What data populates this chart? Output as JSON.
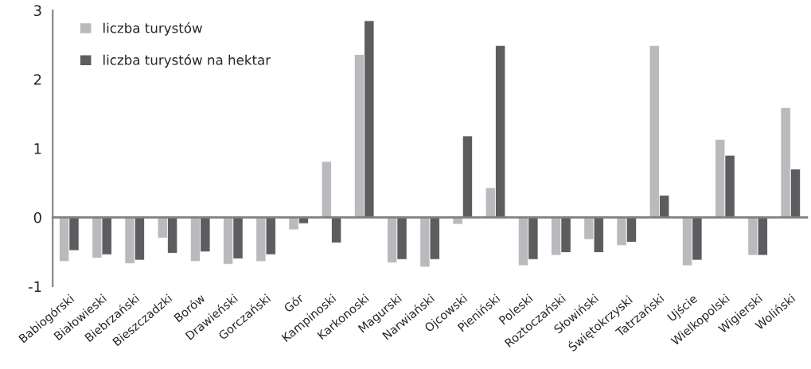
{
  "chart_data": {
    "type": "bar",
    "categories": [
      "Babiogórski",
      "Białowieski",
      "Biebrzański",
      "Bieszczadzki",
      "Borów",
      "Drawieński",
      "Gorczański",
      "Gór",
      "Kampinoski",
      "Karkonoski",
      "Magurski",
      "Narwiański",
      "Ojcowski",
      "Pieniński",
      "Poleski",
      "Roztoczański",
      "Słowiński",
      "Świętokrzyski",
      "Tatrzański",
      "Ujście",
      "Wielkopolski",
      "Wigierski",
      "Woliński"
    ],
    "series": [
      {
        "name": "liczba turystów",
        "color": "#b9babd",
        "values": [
          -0.64,
          -0.59,
          -0.67,
          -0.3,
          -0.64,
          -0.68,
          -0.64,
          -0.18,
          0.81,
          2.36,
          -0.66,
          -0.72,
          -0.1,
          0.43,
          -0.7,
          -0.55,
          -0.32,
          -0.41,
          2.49,
          -0.7,
          1.13,
          -0.55,
          1.59
        ]
      },
      {
        "name": "liczba turystów na hektar",
        "color": "#5d5d5f",
        "values": [
          -0.48,
          -0.54,
          -0.62,
          -0.52,
          -0.5,
          -0.6,
          -0.54,
          -0.09,
          -0.37,
          2.85,
          -0.61,
          -0.61,
          1.18,
          2.49,
          -0.61,
          -0.51,
          -0.51,
          -0.36,
          0.32,
          -0.62,
          0.9,
          -0.55,
          0.7
        ]
      }
    ],
    "ylim": [
      -1,
      3
    ],
    "yticks": [
      -1,
      0,
      1,
      2,
      3
    ],
    "legend": "top left"
  }
}
